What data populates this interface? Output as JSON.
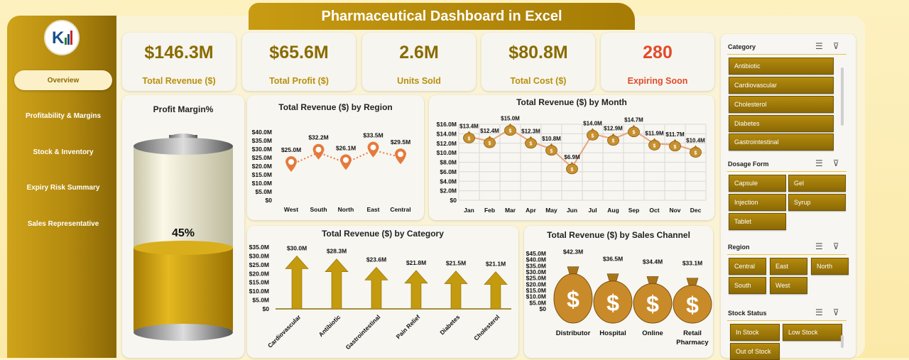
{
  "title": "Pharmaceutical Dashboard in Excel",
  "nav": [
    {
      "label": "Overview",
      "active": true
    },
    {
      "label": "Profitability & Margins"
    },
    {
      "label": "Stock & Inventory"
    },
    {
      "label": "Expiry Risk Summary"
    },
    {
      "label": "Sales Representative"
    }
  ],
  "kpis": [
    {
      "value": "$146.3M",
      "label": "Total Revenue ($)"
    },
    {
      "value": "$65.6M",
      "label": "Total Profit ($)"
    },
    {
      "value": "2.6M",
      "label": "Units Sold"
    },
    {
      "value": "$80.8M",
      "label": "Total Cost ($)"
    },
    {
      "value": "280",
      "label": "Expiring Soon"
    }
  ],
  "colors": {
    "accent": "#b48b0e",
    "dark_gold": "#8a6b00",
    "warn": "#e14b2b",
    "marker": "#e57a3c"
  },
  "profit_margin": {
    "title": "Profit Margin%",
    "value": "45%",
    "fraction": 0.45
  },
  "chart_data": [
    {
      "type": "line",
      "title": "Total Revenue ($) by Region",
      "categories": [
        "West",
        "South",
        "North",
        "East",
        "Central"
      ],
      "values": [
        25.0,
        32.2,
        26.1,
        33.5,
        29.5
      ],
      "data_labels": [
        "$25.0M",
        "$32.2M",
        "$26.1M",
        "$33.5M",
        "$29.5M"
      ],
      "ylim": [
        0,
        40
      ],
      "yticks": [
        "$0",
        "$5.0M",
        "$10.0M",
        "$15.0M",
        "$20.0M",
        "$25.0M",
        "$30.0M",
        "$35.0M",
        "$40.0M"
      ]
    },
    {
      "type": "line",
      "title": "Total Revenue ($) by Month",
      "categories": [
        "Jan",
        "Feb",
        "Mar",
        "Apr",
        "May",
        "Jun",
        "Jul",
        "Aug",
        "Sep",
        "Oct",
        "Nov",
        "Dec"
      ],
      "values": [
        13.4,
        12.4,
        15.0,
        12.3,
        10.8,
        6.9,
        14.0,
        12.9,
        14.7,
        11.9,
        11.7,
        10.4
      ],
      "data_labels": [
        "$13.4M",
        "$12.4M",
        "$15.0M",
        "$12.3M",
        "$10.8M",
        "$6.9M",
        "$14.0M",
        "$12.9M",
        "$14.7M",
        "$11.9M",
        "$11.7M",
        "$10.4M"
      ],
      "ylim": [
        0,
        16
      ],
      "yticks": [
        "$0",
        "$2.0M",
        "$4.0M",
        "$6.0M",
        "$8.0M",
        "$10.0M",
        "$12.0M",
        "$14.0M",
        "$16.0M"
      ],
      "grid": true
    },
    {
      "type": "bar",
      "title": "Total Revenue ($) by Category",
      "categories": [
        "Cardiovascular",
        "Antibiotic",
        "Gastrointestinal",
        "Pain Relief",
        "Diabetes",
        "Cholesterol"
      ],
      "values": [
        30.0,
        28.3,
        23.6,
        21.8,
        21.5,
        21.1
      ],
      "data_labels": [
        "$30.0M",
        "$28.3M",
        "$23.6M",
        "$21.8M",
        "$21.5M",
        "$21.1M"
      ],
      "ylim": [
        0,
        35
      ],
      "yticks": [
        "$0",
        "$5.0M",
        "$10.0M",
        "$15.0M",
        "$20.0M",
        "$25.0M",
        "$30.0M",
        "$35.0M"
      ]
    },
    {
      "type": "bar",
      "title": "Total Revenue ($) by Sales Channel",
      "categories": [
        "Distributor",
        "Hospital",
        "Online",
        "Retail Pharmacy"
      ],
      "values": [
        42.3,
        36.5,
        34.4,
        33.1
      ],
      "data_labels": [
        "$42.3M",
        "$36.5M",
        "$34.4M",
        "$33.1M"
      ],
      "ylim": [
        0,
        45
      ],
      "yticks": [
        "$0",
        "$5.0M",
        "$10.0M",
        "$15.0M",
        "$20.0M",
        "$25.0M",
        "$30.0M",
        "$35.0M",
        "$40.0M",
        "$45.0M"
      ]
    }
  ],
  "slicers": {
    "category": {
      "title": "Category",
      "items": [
        "Antibiotic",
        "Cardiovascular",
        "Cholesterol",
        "Diabetes",
        "Gastrointestinal"
      ]
    },
    "dosage": {
      "title": "Dosage Form",
      "items": [
        "Capsule",
        "Gel",
        "Injection",
        "Syrup",
        "Tablet"
      ]
    },
    "region": {
      "title": "Region",
      "items": [
        "Central",
        "East",
        "North",
        "South",
        "West"
      ]
    },
    "stock": {
      "title": "Stock Status",
      "items": [
        "In Stock",
        "Low Stock",
        "Out of Stock"
      ]
    }
  }
}
